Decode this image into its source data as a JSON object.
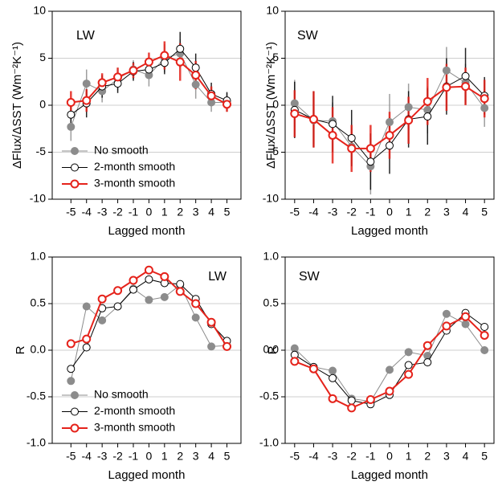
{
  "chart_data": [
    {
      "type": "line",
      "label": "LW",
      "ylabel": "ΔFlux/ΔSST (Wm⁻²K⁻¹)",
      "xlabel": "Lagged month",
      "x": [
        -5,
        -4,
        -3,
        -2,
        -1,
        0,
        1,
        2,
        3,
        4,
        5
      ],
      "xlim": [
        -6.2,
        5.9
      ],
      "xticks": [
        -5,
        -4,
        -3,
        -2,
        -1,
        0,
        1,
        2,
        3,
        4,
        5
      ],
      "ylim": [
        -10,
        10
      ],
      "yticks": [
        -10,
        -5,
        0,
        5,
        10
      ],
      "grid": true,
      "legend": "lower left",
      "series": [
        {
          "name": "No smooth",
          "color": "#8c8c8c",
          "marker": "filled",
          "linewidth": 1,
          "values": [
            -2.3,
            2.3,
            1.5,
            2.8,
            3.8,
            3.2,
            5.0,
            5.5,
            2.2,
            0.3,
            0.3
          ],
          "errors": [
            1.5,
            1.5,
            1.2,
            1.2,
            1.0,
            1.2,
            1.5,
            1.5,
            1.5,
            1.0,
            1.0
          ]
        },
        {
          "name": "2-month smooth",
          "color": "#000000",
          "marker": "open",
          "linewidth": 1,
          "values": [
            -1.0,
            0.2,
            2.0,
            2.3,
            3.6,
            3.8,
            4.5,
            6.0,
            4.0,
            1.2,
            0.5
          ],
          "errors": [
            1.5,
            1.5,
            1.2,
            1.0,
            1.0,
            1.0,
            1.2,
            1.8,
            1.5,
            1.2,
            0.9
          ]
        },
        {
          "name": "3-month smooth",
          "color": "#e5231b",
          "marker": "open",
          "linewidth": 2,
          "values": [
            0.3,
            0.5,
            2.4,
            3.0,
            3.7,
            4.6,
            5.3,
            4.6,
            3.2,
            1.0,
            0.1
          ],
          "errors": [
            1.2,
            1.2,
            1.0,
            1.0,
            0.8,
            1.0,
            1.5,
            2.0,
            1.5,
            1.0,
            0.8
          ]
        }
      ]
    },
    {
      "type": "line",
      "label": "SW",
      "ylabel": "ΔFlux/ΔSST (Wm⁻²K⁻¹)",
      "xlabel": "Lagged month",
      "x": [
        -5,
        -4,
        -3,
        -2,
        -1,
        0,
        1,
        2,
        3,
        4,
        5
      ],
      "xlim": [
        -5.5,
        5.5
      ],
      "xticks": [
        -5,
        -4,
        -3,
        -2,
        -1,
        0,
        1,
        2,
        3,
        4,
        5
      ],
      "ylim": [
        -10,
        10
      ],
      "yticks": [
        -10,
        -5,
        0,
        5,
        10
      ],
      "grid": true,
      "series": [
        {
          "color": "#8c8c8c",
          "marker": "filled",
          "linewidth": 1,
          "values": [
            0.2,
            -1.6,
            -1.7,
            -4.4,
            -6.5,
            -1.8,
            -0.2,
            -0.5,
            3.7,
            2.4,
            -0.3
          ],
          "errors": [
            2.5,
            2.5,
            2.0,
            2.0,
            3.0,
            3.0,
            2.5,
            2.5,
            2.5,
            2.0,
            2.0
          ]
        },
        {
          "color": "#000000",
          "marker": "open",
          "linewidth": 1,
          "values": [
            -0.5,
            -1.5,
            -2.0,
            -3.5,
            -6.0,
            -4.3,
            -1.5,
            -1.2,
            2.0,
            3.1,
            1.0
          ],
          "errors": [
            3.0,
            3.0,
            3.0,
            3.0,
            3.0,
            3.0,
            3.0,
            3.0,
            3.0,
            3.0,
            2.0
          ]
        },
        {
          "color": "#e5231b",
          "marker": "open",
          "linewidth": 2,
          "values": [
            -0.9,
            -1.5,
            -3.2,
            -4.6,
            -4.6,
            -3.2,
            -1.6,
            0.4,
            1.9,
            2.0,
            0.7
          ],
          "errors": [
            2.5,
            3.0,
            3.0,
            2.5,
            2.5,
            2.5,
            2.5,
            2.5,
            2.5,
            2.0,
            2.0
          ]
        }
      ]
    },
    {
      "type": "line",
      "label": "LW",
      "ylabel": "R",
      "xlabel": "Lagged month",
      "x": [
        -5,
        -4,
        -3,
        -2,
        -1,
        0,
        1,
        2,
        3,
        4,
        5
      ],
      "xlim": [
        -6.2,
        5.9
      ],
      "xticks": [
        -5,
        -4,
        -3,
        -2,
        -1,
        0,
        1,
        2,
        3,
        4,
        5
      ],
      "ylim": [
        -1,
        1
      ],
      "yticks": [
        {
          "value": -1,
          "label": "-1.0"
        },
        -0.5,
        {
          "value": 0,
          "label": "0.0"
        },
        0.5,
        {
          "value": 1,
          "label": "1.0"
        }
      ],
      "grid": true,
      "legend": "lower left",
      "series": [
        {
          "name": "No smooth",
          "color": "#8c8c8c",
          "marker": "filled",
          "linewidth": 1,
          "values": [
            -0.33,
            0.47,
            0.32,
            0.47,
            0.66,
            0.54,
            0.57,
            0.7,
            0.35,
            0.04,
            0.05
          ]
        },
        {
          "name": "2-month smooth",
          "color": "#000000",
          "marker": "open",
          "linewidth": 1,
          "values": [
            -0.2,
            0.03,
            0.45,
            0.47,
            0.65,
            0.76,
            0.72,
            0.71,
            0.55,
            0.28,
            0.1
          ]
        },
        {
          "name": "3-month smooth",
          "color": "#e5231b",
          "marker": "open",
          "linewidth": 2,
          "values": [
            0.07,
            0.12,
            0.55,
            0.64,
            0.75,
            0.86,
            0.79,
            0.63,
            0.5,
            0.3,
            0.04
          ]
        }
      ]
    },
    {
      "type": "line",
      "label": "SW",
      "ylabel": "R",
      "xlabel": "Lagged month",
      "x": [
        -5,
        -4,
        -3,
        -2,
        -1,
        0,
        1,
        2,
        3,
        4,
        5
      ],
      "xlim": [
        -5.5,
        5.5
      ],
      "xticks": [
        -5,
        -4,
        -3,
        -2,
        -1,
        0,
        1,
        2,
        3,
        4,
        5
      ],
      "ylim": [
        -1,
        1
      ],
      "yticks": [
        {
          "value": -1,
          "label": "-1.0"
        },
        -0.5,
        {
          "value": 0,
          "label": "0.0"
        },
        0.5,
        {
          "value": 1,
          "label": "1.0"
        }
      ],
      "grid": true,
      "series": [
        {
          "color": "#8c8c8c",
          "marker": "filled",
          "linewidth": 1,
          "values": [
            0.02,
            -0.18,
            -0.22,
            -0.52,
            -0.55,
            -0.21,
            -0.02,
            -0.06,
            0.39,
            0.28,
            0.0
          ]
        },
        {
          "color": "#000000",
          "marker": "open",
          "linewidth": 1,
          "values": [
            -0.05,
            -0.18,
            -0.3,
            -0.54,
            -0.58,
            -0.48,
            -0.16,
            -0.13,
            0.21,
            0.4,
            0.25
          ]
        },
        {
          "color": "#e5231b",
          "marker": "open",
          "linewidth": 2,
          "values": [
            -0.12,
            -0.2,
            -0.52,
            -0.62,
            -0.53,
            -0.44,
            -0.26,
            0.05,
            0.26,
            0.36,
            0.16
          ]
        }
      ]
    }
  ]
}
